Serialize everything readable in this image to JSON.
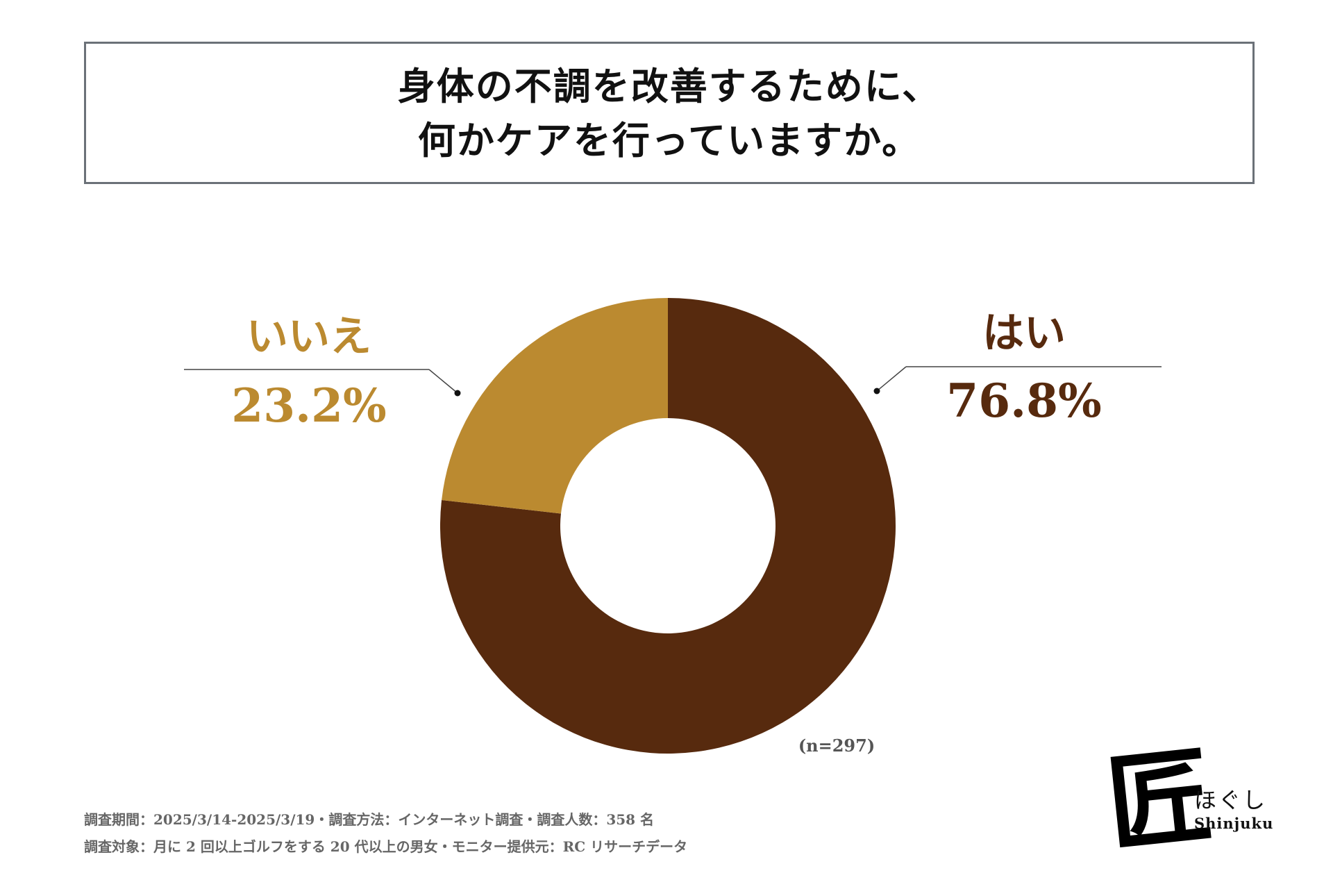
{
  "title": {
    "line1": "身体の不調を改善するために、",
    "line2": "何かケアを行っていますか。"
  },
  "chart_data": {
    "type": "pie",
    "title": "身体の不調を改善するために、何かケアを行っていますか。",
    "donut": true,
    "slices": [
      {
        "label": "はい",
        "value": 76.8,
        "value_label": "76.8%",
        "color": "#572a0e"
      },
      {
        "label": "いいえ",
        "value": 23.2,
        "value_label": "23.2%",
        "color": "#bb8a30"
      }
    ],
    "sample_size": "(n=297)"
  },
  "footnotes": {
    "line1": "調査期間：2025/3/14-2025/3/19・調査方法：インターネット調査・調査人数：358 名",
    "line2": "調査対象：月に 2 回以上ゴルフをする 20 代以上の男女・モニター提供元：RC リサーチデータ"
  },
  "logo": {
    "kanji": "匠",
    "hiragana": "ほぐし",
    "english": "Shinjuku"
  }
}
